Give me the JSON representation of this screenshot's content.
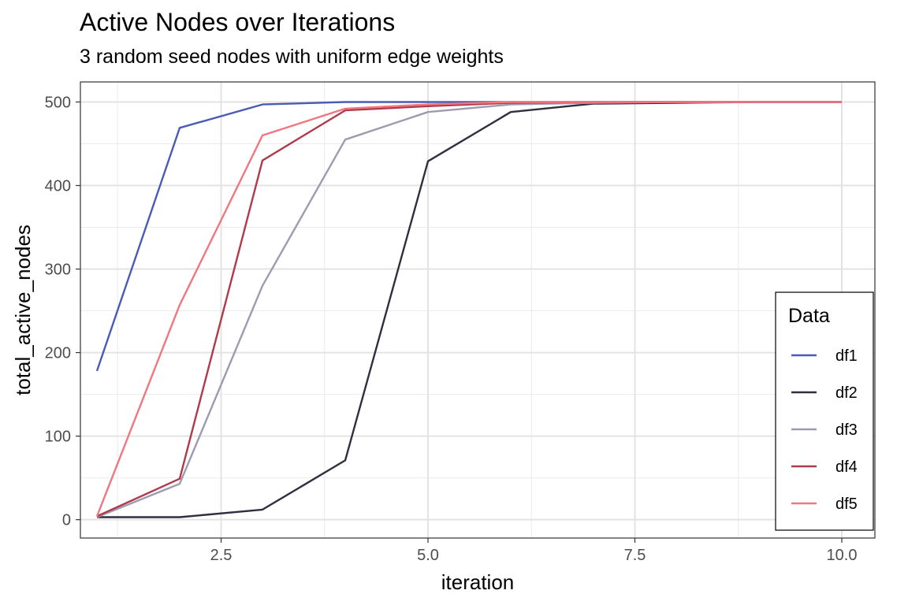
{
  "chart_data": {
    "type": "line",
    "title": "Active Nodes over Iterations",
    "subtitle": "3 random seed nodes with uniform edge weights",
    "xlabel": "iteration",
    "ylabel": "total_active_nodes",
    "xlim": [
      0.8,
      10.4
    ],
    "ylim": [
      -22,
      524
    ],
    "x_ticks": [
      2.5,
      5.0,
      7.5,
      10.0
    ],
    "x_tick_labels": [
      "2.5",
      "5.0",
      "7.5",
      "10.0"
    ],
    "y_ticks": [
      0,
      100,
      200,
      300,
      400,
      500
    ],
    "y_tick_labels": [
      "0",
      "100",
      "200",
      "300",
      "400",
      "500"
    ],
    "grid": true,
    "legend": {
      "title": "Data",
      "placement": "right-inside"
    },
    "x": [
      1,
      2,
      3,
      4,
      5,
      6,
      7,
      8,
      9,
      10
    ],
    "series": [
      {
        "name": "df1",
        "color": "#4a5bb5",
        "values": [
          178,
          469,
          497,
          500,
          500,
          500,
          500,
          500,
          500,
          500
        ]
      },
      {
        "name": "df2",
        "color": "#2f2f3f",
        "values": [
          3,
          3,
          12,
          71,
          429,
          488,
          498,
          499,
          500,
          500
        ]
      },
      {
        "name": "df3",
        "color": "#9e9bb0",
        "values": [
          3,
          43,
          280,
          455,
          488,
          497,
          499,
          500,
          500,
          500
        ]
      },
      {
        "name": "df4",
        "color": "#b03a4a",
        "values": [
          4,
          49,
          430,
          490,
          495,
          499,
          500,
          500,
          500,
          500
        ]
      },
      {
        "name": "df5",
        "color": "#f07680",
        "values": [
          4,
          257,
          460,
          492,
          497,
          500,
          500,
          500,
          500,
          500
        ]
      }
    ]
  }
}
